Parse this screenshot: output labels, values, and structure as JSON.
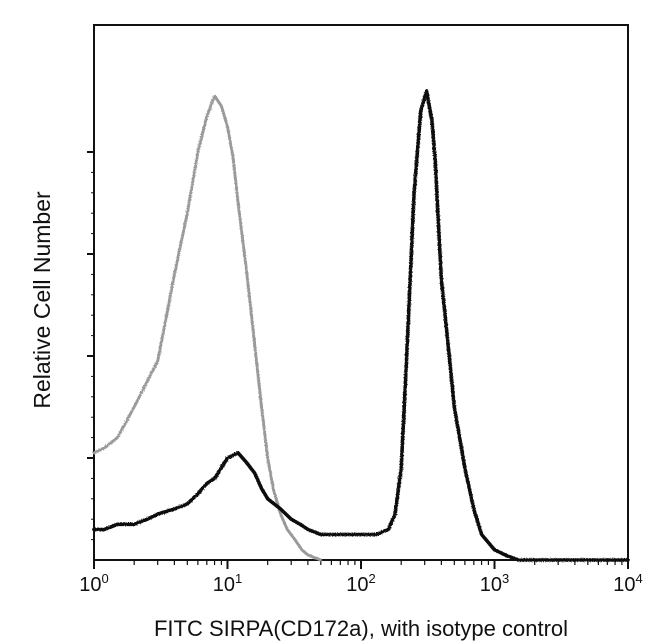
{
  "chart_data": {
    "type": "line",
    "title": "",
    "xlabel": "FITC SIRPA(CD172a), with isotype control",
    "ylabel": "Relative Cell Number",
    "x_scale": "log",
    "xlim": [
      1,
      10000
    ],
    "ylim": [
      0,
      100
    ],
    "x_ticks": [
      {
        "value": 1,
        "base": "10",
        "exp": "0"
      },
      {
        "value": 10,
        "base": "10",
        "exp": "1"
      },
      {
        "value": 100,
        "base": "10",
        "exp": "2"
      },
      {
        "value": 1000,
        "base": "10",
        "exp": "3"
      },
      {
        "value": 10000,
        "base": "10",
        "exp": "4"
      }
    ],
    "y_ticks": [
      20,
      40,
      60,
      80
    ],
    "y_tick_labels_shown": false,
    "grid": false,
    "legend": "none",
    "series": [
      {
        "style": "dotted-gray",
        "color": "#9a9a9a",
        "x": [
          1,
          1.2,
          1.5,
          2,
          2.5,
          3,
          3.5,
          4,
          5,
          6,
          7,
          8,
          9,
          10,
          11,
          12,
          14,
          16,
          18,
          20,
          22,
          25,
          28,
          32,
          36,
          40,
          50
        ],
        "y": [
          21,
          22,
          24,
          30,
          35,
          39,
          48,
          56,
          68,
          80,
          87,
          91,
          89,
          85,
          79,
          70,
          56,
          42,
          30,
          20,
          14,
          9,
          6,
          4,
          2,
          1,
          0
        ]
      },
      {
        "style": "solid-black",
        "color": "#111111",
        "x": [
          1,
          1.2,
          1.5,
          2,
          2.5,
          3,
          4,
          5,
          6,
          7,
          8,
          10,
          12,
          14,
          16,
          18,
          20,
          25,
          30,
          35,
          40,
          50,
          60,
          80,
          100,
          130,
          160,
          180,
          200,
          220,
          250,
          280,
          310,
          340,
          360,
          380,
          400,
          450,
          500,
          600,
          700,
          800,
          1000,
          1200,
          1500,
          2000,
          3000,
          10000
        ],
        "y": [
          6,
          6,
          7,
          7,
          8,
          9,
          10,
          11,
          13,
          15,
          16,
          20,
          21,
          19,
          17,
          14,
          12,
          10,
          8,
          7,
          6,
          5,
          5,
          5,
          5,
          5,
          6,
          9,
          18,
          40,
          72,
          88,
          92,
          86,
          78,
          66,
          55,
          42,
          30,
          18,
          10,
          5,
          2,
          1,
          0,
          0,
          0,
          0
        ]
      }
    ]
  }
}
